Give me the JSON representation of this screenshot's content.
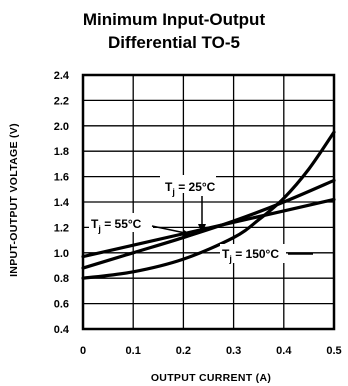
{
  "chart_data": {
    "type": "line",
    "title": [
      "Minimum Input-Output",
      "Differential TO-5"
    ],
    "xlabel": "OUTPUT CURRENT (A)",
    "ylabel": "INPUT-OUTPUT VOLTAGE (V)",
    "xlim": [
      0,
      0.5
    ],
    "ylim": [
      0.4,
      2.4
    ],
    "xticks": [
      "0",
      "0.1",
      "0.2",
      "0.3",
      "0.4",
      "0.5"
    ],
    "yticks": [
      "0.4",
      "0.6",
      "0.8",
      "1.0",
      "1.2",
      "1.4",
      "1.6",
      "1.8",
      "2.0",
      "2.2",
      "2.4"
    ],
    "grid": true,
    "series": [
      {
        "name": "Tj = 25°C",
        "x": [
          0,
          0.1,
          0.2,
          0.3,
          0.4,
          0.5
        ],
        "y": [
          0.97,
          1.06,
          1.15,
          1.24,
          1.33,
          1.42
        ]
      },
      {
        "name": "Tj = 55°C",
        "x": [
          0,
          0.1,
          0.2,
          0.3,
          0.4,
          0.5
        ],
        "y": [
          0.88,
          1.0,
          1.12,
          1.25,
          1.4,
          1.57
        ]
      },
      {
        "name": "Tj = 150°C",
        "x": [
          0,
          0.1,
          0.2,
          0.3,
          0.35,
          0.4,
          0.45,
          0.5
        ],
        "y": [
          0.8,
          0.85,
          0.95,
          1.12,
          1.26,
          1.43,
          1.66,
          1.95
        ]
      }
    ],
    "annotations": [
      {
        "main": "T",
        "sub": "j",
        "rest": " = 25°C"
      },
      {
        "main": "T",
        "sub": "j",
        "rest": " = 55°C"
      },
      {
        "main": "T",
        "sub": "j",
        "rest": " = 150°C"
      }
    ]
  }
}
